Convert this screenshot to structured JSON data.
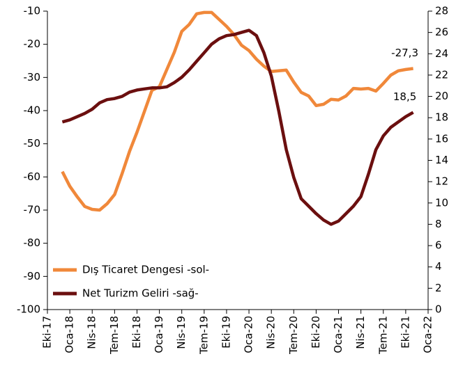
{
  "chart_data": {
    "type": "line",
    "categories": [
      "Eki-17",
      null,
      null,
      "Oca-18",
      null,
      null,
      "Nis-18",
      null,
      null,
      "Tem-18",
      null,
      null,
      "Eki-18",
      null,
      null,
      "Oca-19",
      null,
      null,
      "Nis-19",
      null,
      null,
      "Tem-19",
      null,
      null,
      "Eki-19",
      null,
      null,
      "Oca-20",
      null,
      null,
      "Nis-20",
      null,
      null,
      "Tem-20",
      null,
      null,
      "Eki-20",
      null,
      null,
      "Oca-21",
      null,
      null,
      "Nis-21",
      null,
      null,
      "Tem-21",
      null,
      null,
      "Eki-21",
      null,
      null,
      "Oca-22"
    ],
    "series": [
      {
        "name": "Dış Ticaret Dengesi -sol-",
        "color": "#f0883a",
        "values": [
          null,
          null,
          -58.4,
          -62.8,
          -66,
          -68.9,
          -69.8,
          -70,
          -68.1,
          -65.3,
          -59,
          -52.3,
          -46.5,
          -40.2,
          -33.9,
          -32.8,
          -27.6,
          -22.4,
          -16.1,
          -14,
          -10.8,
          -10.4,
          -10.4,
          -12.5,
          -14.6,
          -17.1,
          -20.3,
          -21.9,
          -24.5,
          -26.6,
          -28.2,
          -28,
          -27.8,
          -31.4,
          -34.5,
          -35.6,
          -38.5,
          -38.1,
          -36.6,
          -36.8,
          -35.6,
          -33.3,
          -33.5,
          -33.3,
          -34.1,
          -31.8,
          -29.3,
          -28,
          -27.6,
          -27.3,
          null,
          null
        ],
        "value_labels": [
          null,
          null,
          null,
          null,
          null,
          null,
          null,
          null,
          null,
          null,
          null,
          null,
          null,
          null,
          null,
          null,
          null,
          null,
          null,
          null,
          null,
          null,
          null,
          null,
          null,
          null,
          null,
          null,
          null,
          null,
          null,
          null,
          null,
          null,
          null,
          null,
          null,
          null,
          null,
          null,
          null,
          null,
          null,
          null,
          null,
          null,
          null,
          null,
          null,
          "-27,3",
          null,
          null
        ]
      },
      {
        "name": "Net Turizm Geliri -sağ-",
        "color": "#6b0f0f",
        "axis": "y2",
        "values": [
          null,
          null,
          17.6,
          17.8,
          18.1,
          18.4,
          18.8,
          19.4,
          19.7,
          19.8,
          20,
          20.4,
          20.6,
          20.7,
          20.8,
          20.8,
          20.9,
          21.3,
          21.8,
          22.5,
          23.3,
          24.1,
          24.9,
          25.4,
          25.7,
          25.8,
          26,
          26.2,
          25.7,
          24.1,
          21.9,
          18.6,
          15,
          12.4,
          10.4,
          9.7,
          9,
          8.4,
          8,
          8.3,
          9,
          9.7,
          10.6,
          12.7,
          15,
          16.3,
          17.1,
          17.6,
          18.1,
          18.5,
          null,
          null
        ],
        "value_labels": [
          null,
          null,
          null,
          null,
          null,
          null,
          null,
          null,
          null,
          null,
          null,
          null,
          null,
          null,
          null,
          null,
          null,
          null,
          null,
          null,
          null,
          null,
          null,
          null,
          null,
          null,
          null,
          null,
          null,
          null,
          null,
          null,
          null,
          null,
          null,
          null,
          null,
          null,
          null,
          null,
          null,
          null,
          null,
          null,
          null,
          null,
          null,
          null,
          null,
          "18,5",
          null,
          null
        ]
      }
    ],
    "ylim": [
      -100,
      -10
    ],
    "yticks": [
      -100,
      -90,
      -80,
      -70,
      -60,
      -50,
      -40,
      -30,
      -20,
      -10
    ],
    "y2lim": [
      0,
      28
    ],
    "y2ticks": [
      0,
      2,
      4,
      6,
      8,
      10,
      12,
      14,
      16,
      18,
      20,
      22,
      24,
      26,
      28
    ],
    "legend": "lower left"
  }
}
